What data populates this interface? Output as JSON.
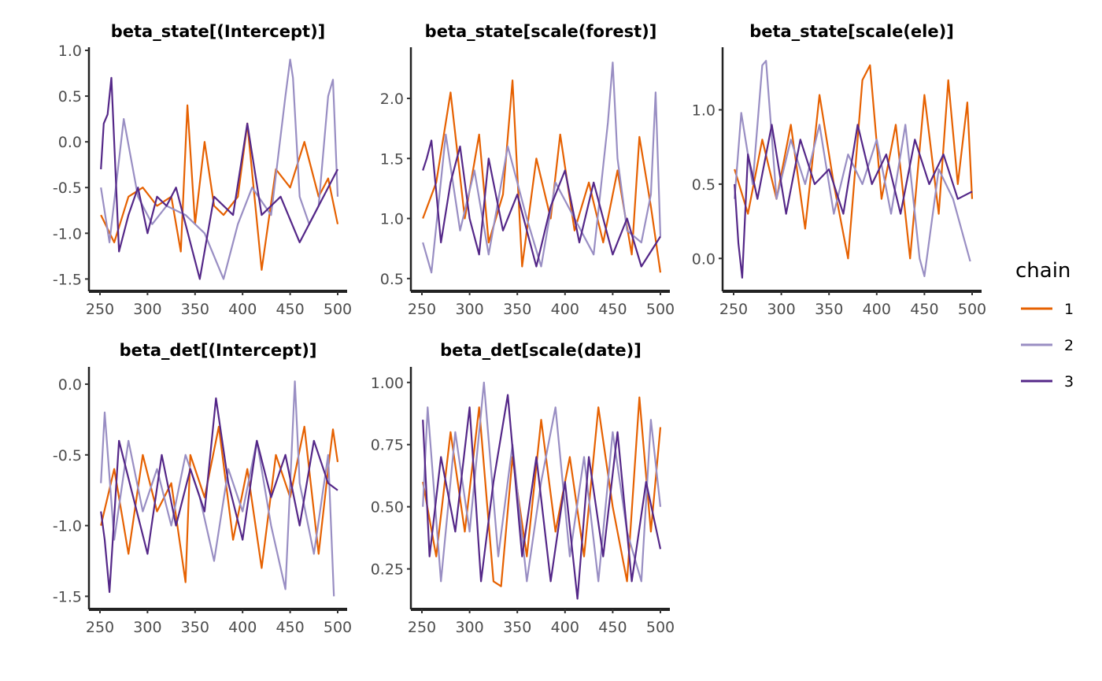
{
  "legend": {
    "title": "chain",
    "entries": [
      {
        "label": "1",
        "color": "#e66101"
      },
      {
        "label": "2",
        "color": "#998ec3"
      },
      {
        "label": "3",
        "color": "#542788"
      }
    ]
  },
  "chart_data": [
    {
      "type": "line",
      "title": "beta_state[(Intercept)]",
      "xlim": [
        250,
        500
      ],
      "ylim": [
        -1.6,
        1.0
      ],
      "xticks": [
        250,
        300,
        350,
        400,
        450,
        500
      ],
      "yticks": [
        1.0,
        0.5,
        0.0,
        -0.5,
        -1.0,
        -1.5
      ],
      "ytick_labels": [
        "1.0",
        "0.5",
        "0.0",
        "-0.5",
        "-1.0",
        "-1.5"
      ],
      "series": [
        {
          "name": "1",
          "color": "#e66101",
          "x": [
            251,
            265,
            280,
            295,
            310,
            325,
            335,
            342,
            350,
            360,
            370,
            380,
            395,
            405,
            420,
            435,
            450,
            465,
            480,
            490,
            500
          ],
          "y": [
            -0.8,
            -1.1,
            -0.6,
            -0.5,
            -0.7,
            -0.6,
            -1.2,
            0.4,
            -0.9,
            0.0,
            -0.7,
            -0.8,
            -0.6,
            0.2,
            -1.4,
            -0.3,
            -0.5,
            0.0,
            -0.6,
            -0.4,
            -0.9
          ]
        },
        {
          "name": "2",
          "color": "#998ec3",
          "x": [
            251,
            260,
            275,
            290,
            305,
            320,
            340,
            360,
            380,
            395,
            410,
            430,
            445,
            450,
            453,
            460,
            470,
            480,
            490,
            495,
            500
          ],
          "y": [
            -0.5,
            -1.1,
            0.25,
            -0.6,
            -0.9,
            -0.7,
            -0.8,
            -1.0,
            -1.5,
            -0.9,
            -0.5,
            -0.8,
            0.5,
            0.9,
            0.7,
            -0.6,
            -0.9,
            -0.7,
            0.5,
            0.68,
            -0.6
          ]
        },
        {
          "name": "3",
          "color": "#542788",
          "x": [
            251,
            254,
            258,
            262,
            270,
            280,
            290,
            300,
            310,
            320,
            330,
            340,
            355,
            370,
            390,
            405,
            420,
            440,
            460,
            480,
            500
          ],
          "y": [
            -0.3,
            0.2,
            0.3,
            0.7,
            -1.2,
            -0.8,
            -0.5,
            -1.0,
            -0.6,
            -0.7,
            -0.5,
            -0.9,
            -1.5,
            -0.6,
            -0.8,
            0.2,
            -0.8,
            -0.6,
            -1.1,
            -0.7,
            -0.3
          ]
        }
      ]
    },
    {
      "type": "line",
      "title": "beta_state[scale(forest)]",
      "xlim": [
        250,
        500
      ],
      "ylim": [
        0.42,
        2.4
      ],
      "xticks": [
        250,
        300,
        350,
        400,
        450,
        500
      ],
      "yticks": [
        2.0,
        1.5,
        1.0,
        0.5
      ],
      "ytick_labels": [
        "2.0",
        "1.5",
        "1.0",
        "0.5"
      ],
      "series": [
        {
          "name": "1",
          "color": "#e66101",
          "x": [
            251,
            265,
            280,
            295,
            310,
            320,
            335,
            345,
            355,
            370,
            385,
            395,
            410,
            425,
            440,
            455,
            470,
            478,
            490,
            500
          ],
          "y": [
            1.0,
            1.3,
            2.05,
            1.0,
            1.7,
            0.8,
            1.2,
            2.15,
            0.6,
            1.5,
            1.0,
            1.7,
            0.9,
            1.3,
            0.8,
            1.4,
            0.7,
            1.68,
            1.1,
            0.55
          ]
        },
        {
          "name": "2",
          "color": "#998ec3",
          "x": [
            251,
            260,
            275,
            290,
            305,
            320,
            340,
            360,
            375,
            390,
            410,
            430,
            445,
            450,
            455,
            465,
            480,
            490,
            495,
            500
          ],
          "y": [
            0.8,
            0.55,
            1.7,
            0.9,
            1.4,
            0.7,
            1.6,
            1.0,
            0.6,
            1.3,
            1.0,
            0.7,
            1.8,
            2.3,
            1.5,
            0.9,
            0.8,
            1.2,
            2.05,
            0.85
          ]
        },
        {
          "name": "3",
          "color": "#542788",
          "x": [
            251,
            255,
            260,
            270,
            280,
            290,
            300,
            310,
            320,
            335,
            350,
            370,
            385,
            400,
            415,
            430,
            450,
            465,
            480,
            500
          ],
          "y": [
            1.4,
            1.5,
            1.65,
            0.8,
            1.3,
            1.6,
            1.0,
            0.7,
            1.5,
            0.9,
            1.2,
            0.6,
            1.1,
            1.4,
            0.8,
            1.3,
            0.7,
            1.0,
            0.6,
            0.85
          ]
        }
      ]
    },
    {
      "type": "line",
      "title": "beta_state[scale(ele)]",
      "xlim": [
        250,
        500
      ],
      "ylim": [
        -0.2,
        1.4
      ],
      "xticks": [
        250,
        300,
        350,
        400,
        450,
        500
      ],
      "yticks": [
        1.0,
        0.5,
        0.0
      ],
      "ytick_labels": [
        "1.0",
        "0.5",
        "0.0"
      ],
      "series": [
        {
          "name": "1",
          "color": "#e66101",
          "x": [
            251,
            265,
            280,
            295,
            310,
            325,
            340,
            355,
            370,
            385,
            393,
            405,
            420,
            435,
            450,
            465,
            475,
            485,
            495,
            500
          ],
          "y": [
            0.6,
            0.3,
            0.8,
            0.4,
            0.9,
            0.2,
            1.1,
            0.5,
            0.0,
            1.2,
            1.3,
            0.4,
            0.9,
            0.0,
            1.1,
            0.3,
            1.2,
            0.5,
            1.05,
            0.4
          ]
        },
        {
          "name": "2",
          "color": "#998ec3",
          "x": [
            251,
            258,
            270,
            280,
            284,
            295,
            310,
            325,
            340,
            355,
            370,
            385,
            400,
            415,
            430,
            445,
            450,
            465,
            480,
            498
          ],
          "y": [
            0.4,
            0.98,
            0.5,
            1.3,
            1.33,
            0.4,
            0.8,
            0.5,
            0.9,
            0.3,
            0.7,
            0.5,
            0.8,
            0.3,
            0.9,
            0.0,
            -0.12,
            0.6,
            0.4,
            -0.02
          ]
        },
        {
          "name": "3",
          "color": "#542788",
          "x": [
            251,
            255,
            259,
            265,
            275,
            290,
            305,
            320,
            335,
            350,
            365,
            380,
            395,
            410,
            425,
            440,
            455,
            470,
            485,
            500
          ],
          "y": [
            0.5,
            0.1,
            -0.13,
            0.7,
            0.4,
            0.9,
            0.3,
            0.8,
            0.5,
            0.6,
            0.3,
            0.9,
            0.5,
            0.7,
            0.3,
            0.8,
            0.5,
            0.7,
            0.4,
            0.45
          ]
        }
      ]
    },
    {
      "type": "line",
      "title": "beta_det[(Intercept)]",
      "xlim": [
        250,
        500
      ],
      "ylim": [
        -1.57,
        0.1
      ],
      "xticks": [
        250,
        300,
        350,
        400,
        450,
        500
      ],
      "yticks": [
        0.0,
        -0.5,
        -1.0,
        -1.5
      ],
      "ytick_labels": [
        "0.0",
        "-0.5",
        "-1.0",
        "-1.5"
      ],
      "series": [
        {
          "name": "1",
          "color": "#e66101",
          "x": [
            251,
            265,
            280,
            295,
            310,
            325,
            340,
            345,
            360,
            375,
            390,
            405,
            420,
            435,
            450,
            465,
            480,
            490,
            495,
            500
          ],
          "y": [
            -1.0,
            -0.6,
            -1.2,
            -0.5,
            -0.9,
            -0.7,
            -1.4,
            -0.5,
            -0.8,
            -0.3,
            -1.1,
            -0.6,
            -1.3,
            -0.5,
            -0.8,
            -0.3,
            -1.2,
            -0.6,
            -0.32,
            -0.55
          ]
        },
        {
          "name": "2",
          "color": "#998ec3",
          "x": [
            251,
            255,
            265,
            280,
            295,
            310,
            325,
            340,
            355,
            370,
            385,
            400,
            415,
            430,
            445,
            455,
            460,
            475,
            490,
            496
          ],
          "y": [
            -0.7,
            -0.2,
            -1.1,
            -0.4,
            -0.9,
            -0.6,
            -1.0,
            -0.5,
            -0.8,
            -1.25,
            -0.6,
            -0.9,
            -0.4,
            -1.0,
            -1.45,
            0.02,
            -0.7,
            -1.2,
            -0.5,
            -1.5
          ]
        },
        {
          "name": "3",
          "color": "#542788",
          "x": [
            251,
            255,
            260,
            270,
            285,
            300,
            315,
            330,
            345,
            360,
            372,
            385,
            400,
            415,
            430,
            445,
            460,
            475,
            490,
            500
          ],
          "y": [
            -0.9,
            -1.1,
            -1.47,
            -0.4,
            -0.8,
            -1.2,
            -0.5,
            -1.0,
            -0.6,
            -0.9,
            -0.1,
            -0.7,
            -1.1,
            -0.4,
            -0.8,
            -0.5,
            -1.0,
            -0.4,
            -0.7,
            -0.75
          ]
        }
      ]
    },
    {
      "type": "line",
      "title": "beta_det[scale(date)]",
      "xlim": [
        250,
        500
      ],
      "ylim": [
        0.1,
        1.05
      ],
      "xticks": [
        250,
        300,
        350,
        400,
        450,
        500
      ],
      "yticks": [
        1.0,
        0.75,
        0.5,
        0.25
      ],
      "ytick_labels": [
        "1.00",
        "0.75",
        "0.50",
        "0.25"
      ],
      "series": [
        {
          "name": "1",
          "color": "#e66101",
          "x": [
            251,
            265,
            280,
            295,
            310,
            325,
            333,
            345,
            360,
            375,
            390,
            405,
            420,
            435,
            450,
            465,
            478,
            490,
            500
          ],
          "y": [
            0.6,
            0.3,
            0.8,
            0.4,
            0.9,
            0.2,
            0.18,
            0.7,
            0.3,
            0.85,
            0.4,
            0.7,
            0.3,
            0.9,
            0.5,
            0.2,
            0.94,
            0.4,
            0.82
          ]
        },
        {
          "name": "2",
          "color": "#998ec3",
          "x": [
            251,
            256,
            270,
            285,
            300,
            315,
            330,
            345,
            360,
            375,
            390,
            405,
            420,
            435,
            450,
            465,
            480,
            490,
            500
          ],
          "y": [
            0.5,
            0.9,
            0.2,
            0.8,
            0.4,
            1.0,
            0.3,
            0.75,
            0.2,
            0.6,
            0.9,
            0.3,
            0.7,
            0.2,
            0.8,
            0.4,
            0.2,
            0.85,
            0.5
          ]
        },
        {
          "name": "3",
          "color": "#542788",
          "x": [
            251,
            258,
            270,
            285,
            300,
            312,
            325,
            340,
            355,
            370,
            385,
            400,
            413,
            425,
            440,
            455,
            470,
            485,
            500
          ],
          "y": [
            0.85,
            0.3,
            0.7,
            0.4,
            0.9,
            0.2,
            0.6,
            0.95,
            0.3,
            0.7,
            0.2,
            0.6,
            0.13,
            0.7,
            0.3,
            0.8,
            0.2,
            0.6,
            0.33
          ]
        }
      ]
    }
  ]
}
